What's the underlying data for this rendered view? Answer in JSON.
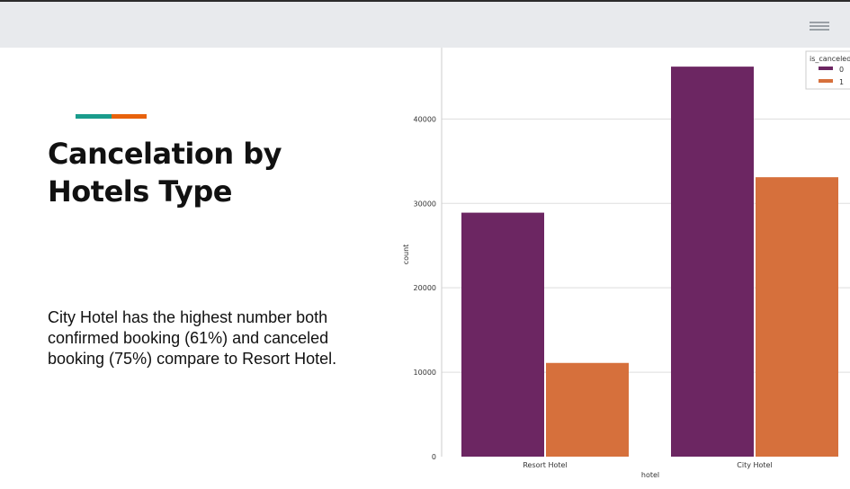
{
  "topbar": {
    "menu_icon": "hamburger-menu-icon"
  },
  "accent_colors": {
    "teal": "#1a9c8c",
    "orange": "#e8620c"
  },
  "slide": {
    "title_line1": "Cancelation by",
    "title_line2": "Hotels Type",
    "body": "City Hotel has the highest number both confirmed booking (61%) and canceled booking (75%) compare to Resort Hotel."
  },
  "chart_data": {
    "type": "bar",
    "xlabel": "hotel",
    "ylabel": "count",
    "categories": [
      "Resort Hotel",
      "City Hotel"
    ],
    "ylim": [
      0,
      46000
    ],
    "yticks": [
      0,
      10000,
      20000,
      30000,
      40000
    ],
    "grid": true,
    "legend": {
      "title": "is_canceled",
      "placement": "top-right"
    },
    "series": [
      {
        "name": "0",
        "color": "#6c2662",
        "values": [
          28900,
          46200
        ]
      },
      {
        "name": "1",
        "color": "#d6703c",
        "values": [
          11100,
          33100
        ]
      }
    ]
  }
}
